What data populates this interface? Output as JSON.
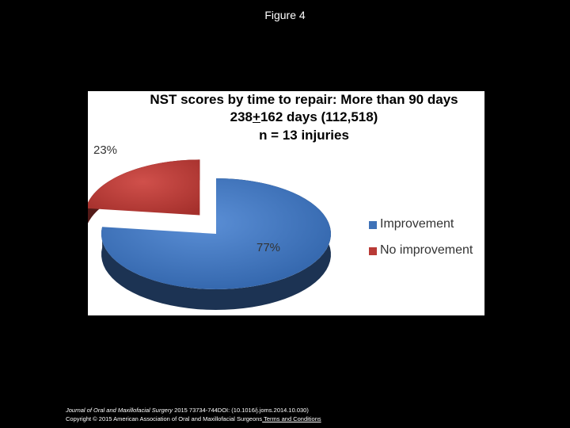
{
  "figure_title": "Figure 4",
  "chart_data": {
    "type": "pie",
    "title_lines": [
      "NST scores by time to repair: More than 90 days",
      "238+162 days (112,518)",
      "n = 13 injuries"
    ],
    "title_line2_parts": {
      "pre": "238",
      "underlined": "+",
      "post": "162 days (112,518)"
    },
    "slices": [
      {
        "label": "Improvement",
        "value": 77,
        "display": "77%",
        "color": "#3f72b8"
      },
      {
        "label": "No improvement",
        "value": 23,
        "display": "23%",
        "color": "#b93a36"
      }
    ],
    "legend_position": "right"
  },
  "footer": {
    "journal": "Journal of Oral and Maxillofacial Surgery",
    "citation": " 2015 73734-744DOI: (10.1016/j.joms.2014.10.030)",
    "copyright": "Copyright © 2015 American Association of Oral and Maxillofacial Surgeons",
    "terms": " Terms and Conditions"
  }
}
